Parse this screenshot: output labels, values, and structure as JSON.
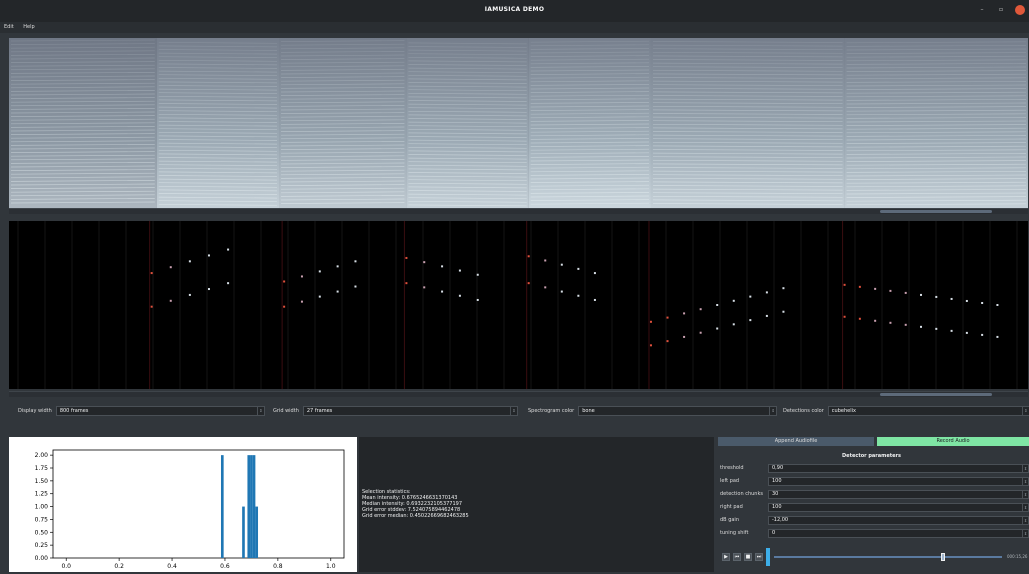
{
  "window": {
    "title": "IAMUSICA DEMO",
    "minimize_glyph": "–",
    "maximize_glyph": "▫",
    "close_color": "#e0583a"
  },
  "menu": [
    "Edit",
    "Help"
  ],
  "colors": {
    "accent": "#7fe5a4",
    "background": "#31363b",
    "field": "#232629"
  },
  "controls": {
    "display_width": {
      "label": "Display width",
      "value": "800 frames"
    },
    "grid_width": {
      "label": "Grid width",
      "value": "27 frames"
    },
    "spectrogram_color": {
      "label": "Spectrogram color",
      "value": "bone"
    },
    "detections_color": {
      "label": "Detections color",
      "value": "cubehelix"
    },
    "spin_arrow": "⇕"
  },
  "stats": {
    "lines": [
      "Selection statistics:",
      "Mean intensity: 0.6765246631370143",
      "Median intensity: 0.6932232105377197",
      "Grid error stddev: 7.524075894462478",
      "Grid error median: 0.45022669682463285"
    ]
  },
  "right_panel": {
    "append_label": "Append Audiofile",
    "record_label": "Record Audio",
    "params_title": "Detector parameters",
    "params": [
      {
        "label": "threshold",
        "value": "0,90"
      },
      {
        "label": "left pad",
        "value": "100"
      },
      {
        "label": "detection chunks",
        "value": "30"
      },
      {
        "label": "right pad",
        "value": "100"
      },
      {
        "label": "dB gain",
        "value": "-12,00"
      },
      {
        "label": "tuning shift",
        "value": "0"
      }
    ],
    "time_display": "000:15,26",
    "playback_position": 0.74,
    "transport": {
      "play": "▶",
      "prev": "⏮",
      "stop": "■",
      "next": "⏭"
    }
  },
  "chart_data": {
    "type": "bar",
    "x": [
      0.59,
      0.67,
      0.69,
      0.7,
      0.71,
      0.72
    ],
    "values": [
      2,
      1,
      2,
      2,
      2,
      1
    ],
    "bar_width": 0.01,
    "xlim": [
      -0.05,
      1.05
    ],
    "ylim": [
      0,
      2.1
    ],
    "xticks": [
      "0.0",
      "0.2",
      "0.4",
      "0.6",
      "0.8",
      "1.0"
    ],
    "yticks": [
      "0.00",
      "0.25",
      "0.50",
      "0.75",
      "1.00",
      "1.25",
      "1.50",
      "1.75",
      "2.00"
    ],
    "bar_color": "#1f77b4"
  },
  "spectrogram": {
    "segments": [
      {
        "start": 0.0,
        "end": 0.145,
        "brightness": 0.65
      },
      {
        "start": 0.145,
        "end": 0.265,
        "brightness": 0.85
      },
      {
        "start": 0.265,
        "end": 0.39,
        "brightness": 0.8
      },
      {
        "start": 0.39,
        "end": 0.51,
        "brightness": 0.85
      },
      {
        "start": 0.51,
        "end": 0.63,
        "brightness": 0.9
      },
      {
        "start": 0.63,
        "end": 0.82,
        "brightness": 0.85
      },
      {
        "start": 0.82,
        "end": 1.0,
        "brightness": 0.85
      }
    ],
    "scroll_thumb": {
      "start": 0.855,
      "end": 0.965
    }
  },
  "detections": {
    "groups": [
      {
        "start": 0.14,
        "end": 0.215,
        "top": 0.31,
        "bottom": 0.51,
        "trend": -0.14,
        "n": 5
      },
      {
        "start": 0.27,
        "end": 0.34,
        "top": 0.36,
        "bottom": 0.51,
        "trend": -0.12,
        "n": 5
      },
      {
        "start": 0.39,
        "end": 0.46,
        "top": 0.22,
        "bottom": 0.37,
        "trend": 0.1,
        "n": 5
      },
      {
        "start": 0.51,
        "end": 0.575,
        "top": 0.21,
        "bottom": 0.37,
        "trend": 0.1,
        "n": 5
      },
      {
        "start": 0.63,
        "end": 0.76,
        "top": 0.6,
        "bottom": 0.74,
        "trend": -0.2,
        "n": 9
      },
      {
        "start": 0.82,
        "end": 0.97,
        "top": 0.38,
        "bottom": 0.57,
        "trend": 0.12,
        "n": 11
      }
    ],
    "scroll_thumb": {
      "start": 0.855,
      "end": 0.965
    }
  }
}
